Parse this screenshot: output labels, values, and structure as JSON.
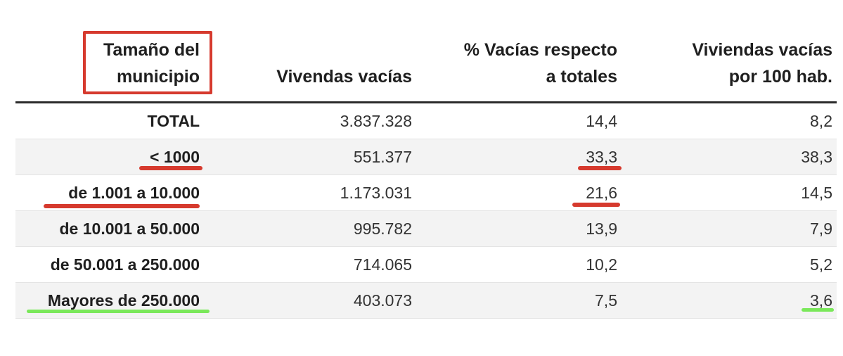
{
  "chart_data": {
    "type": "table",
    "columns": [
      "Tamaño del\nmunicipio",
      "Vivendas vacías",
      "% Vacías respecto\na totales",
      "Viviendas vacías\npor 100 hab."
    ],
    "rows": [
      [
        "TOTAL",
        "3.837.328",
        "14,4",
        "8,2"
      ],
      [
        "< 1000",
        "551.377",
        "33,3",
        "38,3"
      ],
      [
        "de 1.001 a 10.000",
        "1.173.031",
        "21,6",
        "14,5"
      ],
      [
        "de 10.001 a 50.000",
        "995.782",
        "13,9",
        "7,9"
      ],
      [
        "de 50.001 a 250.000",
        "714.065",
        "10,2",
        "5,2"
      ],
      [
        "Mayores de 250.000",
        "403.073",
        "7,5",
        "3,6"
      ]
    ]
  },
  "colors": {
    "highlight_red": "#d63a2e",
    "highlight_green": "#7ae85a"
  }
}
